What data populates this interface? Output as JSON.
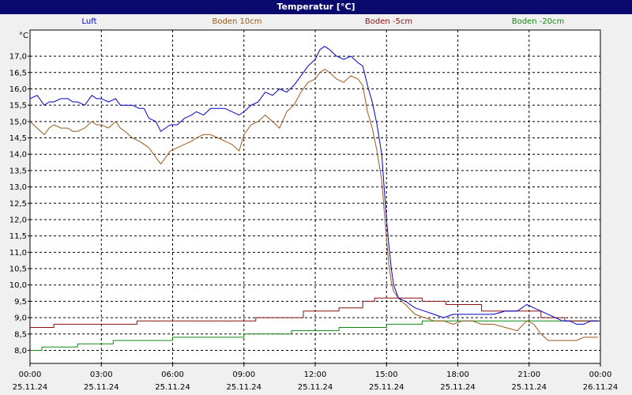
{
  "window": {
    "title": "Temperatur [°C]"
  },
  "chart_data": {
    "type": "line",
    "title": "Temperatur [°C]",
    "ylabel": "°C",
    "xlabel": "",
    "ylim": [
      7.6,
      17.8
    ],
    "xlim": [
      0,
      24
    ],
    "grid": true,
    "legend_position": "top",
    "yticks": [
      8.0,
      8.5,
      9.0,
      9.5,
      10.0,
      10.5,
      11.0,
      11.5,
      12.0,
      12.5,
      13.0,
      13.5,
      14.0,
      14.5,
      15.0,
      15.5,
      16.0,
      16.5,
      17.0
    ],
    "ytick_labels": [
      "8,0",
      "8,5",
      "9,0",
      "9,5",
      "10,0",
      "10,5",
      "11,0",
      "11,5",
      "12,0",
      "12,5",
      "13,0",
      "13,5",
      "14,0",
      "14,5",
      "15,0",
      "15,5",
      "16,0",
      "16,5",
      "17,0"
    ],
    "xticks": [
      0,
      3,
      6,
      9,
      12,
      15,
      18,
      21,
      24
    ],
    "xtick_times": [
      "00:00",
      "03:00",
      "06:00",
      "09:00",
      "12:00",
      "15:00",
      "18:00",
      "21:00",
      "00:00"
    ],
    "xtick_dates": [
      "25.11.24",
      "25.11.24",
      "25.11.24",
      "25.11.24",
      "25.11.24",
      "25.11.24",
      "25.11.24",
      "25.11.24",
      "26.11.24"
    ],
    "series": [
      {
        "name": "Luft",
        "color": "#0000cc",
        "x": [
          0,
          0.3,
          0.6,
          0.8,
          1.0,
          1.3,
          1.6,
          1.8,
          2.0,
          2.3,
          2.6,
          2.8,
          3.0,
          3.3,
          3.6,
          3.8,
          4.0,
          4.3,
          4.6,
          4.8,
          5.0,
          5.3,
          5.5,
          5.7,
          5.9,
          6.2,
          6.5,
          6.8,
          7.0,
          7.3,
          7.6,
          7.9,
          8.2,
          8.5,
          8.8,
          9.0,
          9.3,
          9.6,
          9.9,
          10.2,
          10.5,
          10.8,
          11.1,
          11.4,
          11.7,
          12.0,
          12.2,
          12.4,
          12.6,
          12.9,
          13.2,
          13.5,
          13.8,
          14.0,
          14.2,
          14.4,
          14.6,
          14.8,
          14.9,
          15.0,
          15.1,
          15.2,
          15.3,
          15.5,
          15.8,
          16.2,
          16.6,
          17.0,
          17.4,
          17.8,
          18.2,
          18.6,
          19.0,
          19.5,
          20.0,
          20.5,
          20.9,
          21.2,
          21.5,
          21.8,
          22.1,
          22.4,
          22.7,
          23.0,
          23.3,
          23.6,
          23.9
        ],
        "y": [
          15.7,
          15.8,
          15.5,
          15.6,
          15.6,
          15.7,
          15.7,
          15.6,
          15.6,
          15.5,
          15.8,
          15.7,
          15.7,
          15.6,
          15.7,
          15.5,
          15.5,
          15.5,
          15.4,
          15.4,
          15.1,
          15.0,
          14.7,
          14.8,
          14.9,
          14.9,
          15.1,
          15.2,
          15.3,
          15.2,
          15.4,
          15.4,
          15.4,
          15.3,
          15.2,
          15.3,
          15.5,
          15.6,
          15.9,
          15.8,
          16.0,
          15.9,
          16.1,
          16.4,
          16.7,
          16.9,
          17.2,
          17.3,
          17.2,
          17.0,
          16.9,
          17.0,
          16.8,
          16.7,
          16.1,
          15.6,
          14.9,
          14.0,
          13.0,
          12.0,
          11.2,
          10.5,
          10.0,
          9.6,
          9.5,
          9.3,
          9.2,
          9.1,
          9.0,
          9.1,
          9.1,
          9.1,
          9.1,
          9.1,
          9.2,
          9.2,
          9.4,
          9.3,
          9.2,
          9.1,
          9.0,
          8.9,
          8.9,
          8.8,
          8.8,
          8.9,
          8.9
        ]
      },
      {
        "name": "Boden 10cm",
        "color": "#9a5a1a",
        "x": [
          0,
          0.3,
          0.6,
          0.8,
          1.0,
          1.3,
          1.6,
          1.8,
          2.0,
          2.3,
          2.6,
          2.8,
          3.0,
          3.3,
          3.6,
          3.8,
          4.0,
          4.3,
          4.6,
          4.8,
          5.0,
          5.3,
          5.5,
          5.7,
          5.9,
          6.2,
          6.5,
          6.8,
          7.0,
          7.3,
          7.6,
          7.9,
          8.2,
          8.5,
          8.8,
          9.0,
          9.3,
          9.6,
          9.9,
          10.2,
          10.5,
          10.8,
          11.1,
          11.4,
          11.7,
          12.0,
          12.2,
          12.4,
          12.6,
          12.9,
          13.2,
          13.5,
          13.8,
          14.0,
          14.2,
          14.4,
          14.6,
          14.8,
          14.9,
          15.0,
          15.1,
          15.2,
          15.3,
          15.5,
          15.8,
          16.2,
          16.6,
          17.0,
          17.4,
          17.8,
          18.2,
          18.6,
          19.0,
          19.5,
          20.0,
          20.5,
          20.9,
          21.2,
          21.5,
          21.8,
          22.1,
          22.4,
          22.7,
          23.0,
          23.3,
          23.6,
          23.9
        ],
        "y": [
          15.0,
          14.8,
          14.6,
          14.8,
          14.9,
          14.8,
          14.8,
          14.7,
          14.7,
          14.8,
          15.0,
          14.9,
          14.9,
          14.8,
          15.0,
          14.8,
          14.7,
          14.5,
          14.4,
          14.3,
          14.2,
          13.9,
          13.7,
          13.9,
          14.1,
          14.2,
          14.3,
          14.4,
          14.5,
          14.6,
          14.6,
          14.5,
          14.4,
          14.3,
          14.1,
          14.6,
          14.9,
          15.0,
          15.2,
          15.0,
          14.8,
          15.3,
          15.5,
          15.9,
          16.2,
          16.3,
          16.5,
          16.6,
          16.5,
          16.3,
          16.2,
          16.4,
          16.3,
          16.1,
          15.3,
          14.8,
          14.1,
          13.2,
          12.3,
          11.4,
          10.6,
          10.1,
          9.8,
          9.6,
          9.4,
          9.1,
          9.0,
          8.9,
          8.9,
          8.8,
          8.9,
          8.9,
          8.8,
          8.8,
          8.7,
          8.6,
          8.9,
          8.8,
          8.5,
          8.3,
          8.3,
          8.3,
          8.3,
          8.3,
          8.4,
          8.4,
          8.4
        ]
      },
      {
        "name": "Boden -5cm",
        "color": "#8b1010",
        "x": [
          0,
          1.0,
          1.0,
          4.5,
          4.5,
          9.5,
          9.5,
          11.5,
          11.5,
          13.0,
          13.0,
          14.0,
          14.0,
          14.5,
          14.5,
          15.5,
          15.5,
          16.5,
          16.5,
          17.5,
          17.5,
          19.0,
          19.0,
          21.5,
          21.5,
          22.5,
          22.5,
          24.0
        ],
        "y": [
          8.7,
          8.7,
          8.8,
          8.8,
          8.9,
          8.9,
          9.0,
          9.0,
          9.2,
          9.2,
          9.3,
          9.3,
          9.5,
          9.5,
          9.6,
          9.6,
          9.6,
          9.6,
          9.5,
          9.5,
          9.4,
          9.4,
          9.2,
          9.2,
          9.0,
          9.0,
          8.9,
          8.9
        ]
      },
      {
        "name": "Boden -20cm",
        "color": "#108a10",
        "x": [
          0,
          0.5,
          0.5,
          2.0,
          2.0,
          3.5,
          3.5,
          6.0,
          6.0,
          9.0,
          9.0,
          11.0,
          11.0,
          13.0,
          13.0,
          15.0,
          15.0,
          16.5,
          16.5,
          21.0,
          21.0,
          24.0
        ],
        "y": [
          8.0,
          8.0,
          8.1,
          8.1,
          8.2,
          8.2,
          8.3,
          8.3,
          8.4,
          8.4,
          8.5,
          8.5,
          8.6,
          8.6,
          8.7,
          8.7,
          8.8,
          8.8,
          8.9,
          8.9,
          8.9,
          8.9
        ]
      }
    ]
  }
}
